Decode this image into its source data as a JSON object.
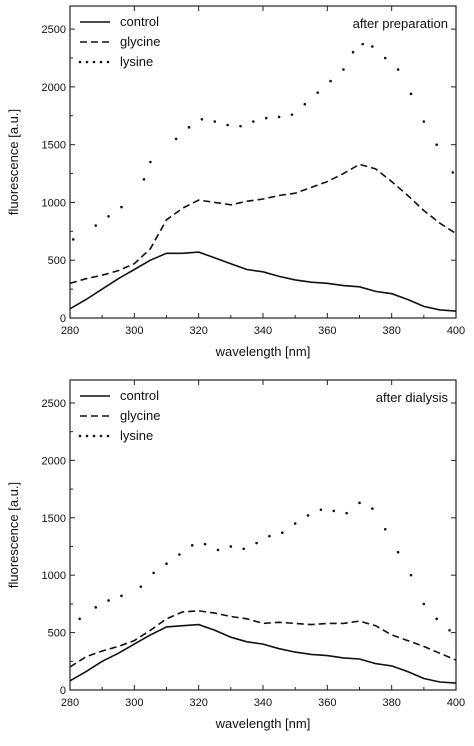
{
  "chart_data": [
    {
      "type": "line",
      "title": "after preparation",
      "xlabel": "wavelength [nm]",
      "ylabel": "fluorescence [a.u.]",
      "xlim": [
        280,
        400
      ],
      "ylim": [
        0,
        2700
      ],
      "xticks": [
        280,
        300,
        320,
        340,
        360,
        380,
        400
      ],
      "yticks": [
        0,
        500,
        1000,
        1500,
        2000,
        2500
      ],
      "legend_position": "top-left",
      "grid": false,
      "series": [
        {
          "name": "control",
          "style": "solid",
          "x": [
            280,
            285,
            290,
            295,
            300,
            305,
            310,
            315,
            320,
            325,
            330,
            335,
            340,
            345,
            350,
            355,
            360,
            365,
            370,
            375,
            380,
            385,
            390,
            395,
            400
          ],
          "y": [
            80,
            160,
            250,
            340,
            420,
            500,
            560,
            560,
            570,
            520,
            470,
            420,
            400,
            360,
            330,
            310,
            300,
            280,
            270,
            230,
            210,
            160,
            100,
            70,
            60
          ]
        },
        {
          "name": "glycine",
          "style": "dashed",
          "x": [
            280,
            285,
            290,
            295,
            300,
            305,
            310,
            315,
            320,
            325,
            330,
            335,
            340,
            345,
            350,
            355,
            360,
            365,
            370,
            375,
            380,
            385,
            390,
            395,
            400
          ],
          "y": [
            300,
            340,
            370,
            410,
            470,
            600,
            850,
            950,
            1020,
            1000,
            980,
            1010,
            1030,
            1060,
            1080,
            1130,
            1180,
            1250,
            1330,
            1290,
            1180,
            1060,
            930,
            820,
            730
          ]
        },
        {
          "name": "lysine",
          "style": "dotted",
          "x": [
            281,
            288,
            292,
            296,
            303,
            305,
            313,
            317,
            321,
            325,
            329,
            333,
            337,
            341,
            345,
            349,
            353,
            357,
            361,
            365,
            368,
            371,
            374,
            378,
            382,
            386,
            390,
            394,
            399
          ],
          "y": [
            680,
            800,
            880,
            960,
            1200,
            1350,
            1550,
            1650,
            1720,
            1700,
            1670,
            1660,
            1700,
            1730,
            1740,
            1760,
            1850,
            1950,
            2050,
            2150,
            2300,
            2370,
            2350,
            2250,
            2150,
            1940,
            1700,
            1500,
            1260
          ]
        }
      ]
    },
    {
      "type": "line",
      "title": "after dialysis",
      "xlabel": "wavelength [nm]",
      "ylabel": "fluorescence [a.u.]",
      "xlim": [
        280,
        400
      ],
      "ylim": [
        0,
        2700
      ],
      "xticks": [
        280,
        300,
        320,
        340,
        360,
        380,
        400
      ],
      "yticks": [
        0,
        500,
        1000,
        1500,
        2000,
        2500
      ],
      "legend_position": "top-left",
      "grid": false,
      "series": [
        {
          "name": "control",
          "style": "solid",
          "x": [
            280,
            285,
            290,
            295,
            300,
            305,
            310,
            315,
            320,
            325,
            330,
            335,
            340,
            345,
            350,
            355,
            360,
            365,
            370,
            375,
            380,
            385,
            390,
            395,
            400
          ],
          "y": [
            80,
            160,
            250,
            320,
            400,
            480,
            550,
            560,
            570,
            520,
            460,
            420,
            400,
            360,
            330,
            310,
            300,
            280,
            270,
            230,
            210,
            160,
            100,
            70,
            60
          ]
        },
        {
          "name": "glycine",
          "style": "dashed",
          "x": [
            280,
            285,
            290,
            295,
            300,
            305,
            310,
            315,
            320,
            325,
            330,
            335,
            340,
            345,
            350,
            355,
            360,
            365,
            370,
            375,
            380,
            385,
            390,
            395,
            400
          ],
          "y": [
            200,
            290,
            340,
            380,
            430,
            520,
            620,
            680,
            690,
            670,
            640,
            620,
            580,
            590,
            580,
            570,
            580,
            580,
            600,
            560,
            480,
            430,
            380,
            320,
            260
          ]
        },
        {
          "name": "lysine",
          "style": "dotted",
          "x": [
            283,
            288,
            292,
            296,
            302,
            306,
            310,
            314,
            318,
            322,
            326,
            330,
            334,
            338,
            342,
            346,
            350,
            354,
            358,
            362,
            366,
            370,
            374,
            378,
            382,
            386,
            390,
            394,
            398
          ],
          "y": [
            620,
            720,
            780,
            820,
            900,
            1020,
            1100,
            1180,
            1260,
            1270,
            1220,
            1250,
            1230,
            1280,
            1340,
            1370,
            1450,
            1520,
            1570,
            1560,
            1540,
            1630,
            1580,
            1400,
            1200,
            1000,
            750,
            620,
            520
          ]
        }
      ]
    }
  ]
}
